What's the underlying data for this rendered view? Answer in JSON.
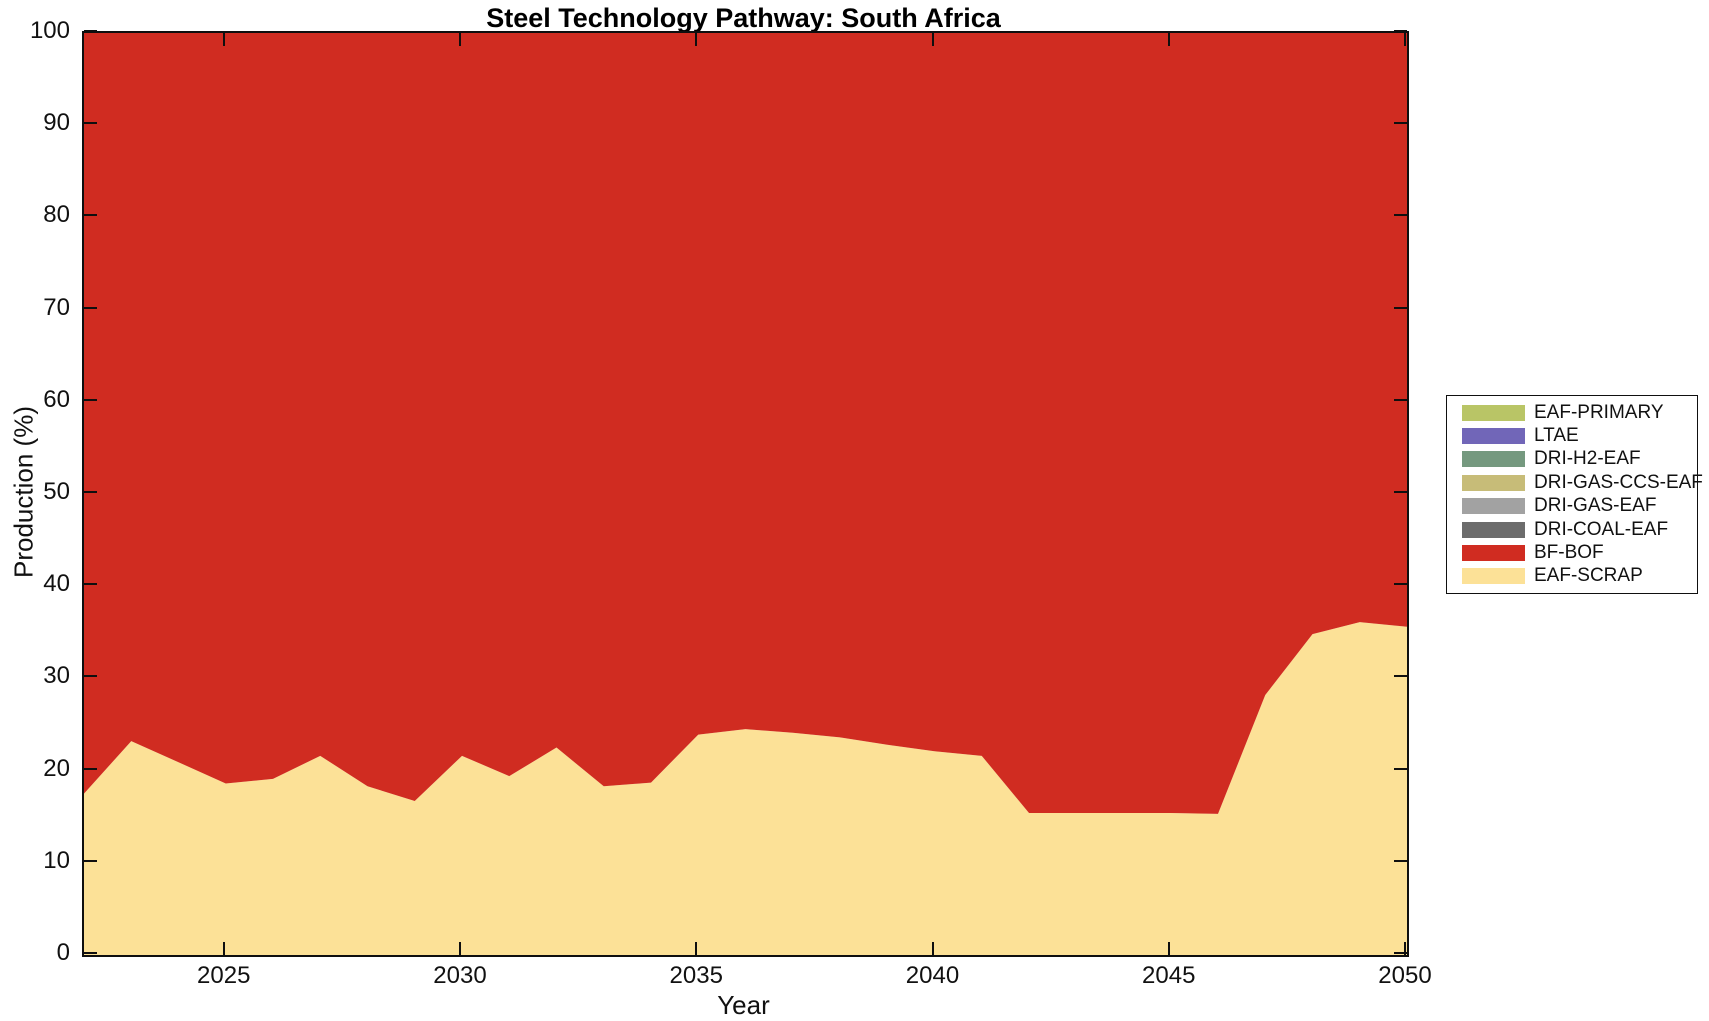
{
  "title": "Steel Technology Pathway: South Africa",
  "axes": {
    "xlabel": "Year",
    "ylabel": "Production (%)"
  },
  "colors": {
    "axis": "#0f0f0f",
    "background": "#ffffff"
  },
  "chart_data": {
    "type": "area",
    "stacked": true,
    "title": "Steel Technology Pathway: South Africa",
    "xlabel": "Year",
    "ylabel": "Production (%)",
    "xlim": [
      2022,
      2050
    ],
    "ylim": [
      0,
      100
    ],
    "grid": false,
    "xticks": [
      2025,
      2030,
      2035,
      2040,
      2045,
      2050
    ],
    "yticks": [
      0,
      10,
      20,
      30,
      40,
      50,
      60,
      70,
      80,
      90,
      100
    ],
    "x": [
      2022,
      2023,
      2024,
      2025,
      2026,
      2027,
      2028,
      2029,
      2030,
      2031,
      2032,
      2033,
      2034,
      2035,
      2036,
      2037,
      2038,
      2039,
      2040,
      2041,
      2042,
      2043,
      2044,
      2045,
      2046,
      2047,
      2048,
      2049,
      2050
    ],
    "series": [
      {
        "name": "EAF-SCRAP",
        "color": "#FCE197",
        "values": [
          17.5,
          23.2,
          20.9,
          18.6,
          19.1,
          21.6,
          18.3,
          16.7,
          21.6,
          19.4,
          22.5,
          18.3,
          18.7,
          23.9,
          24.5,
          24.1,
          23.6,
          22.8,
          22.1,
          21.6,
          15.4,
          15.4,
          15.4,
          15.4,
          15.3,
          28.2,
          34.8,
          36.1,
          35.6
        ]
      },
      {
        "name": "BF-BOF",
        "color": "#D02C21",
        "values": [
          82.5,
          76.8,
          79.1,
          81.4,
          80.9,
          78.4,
          81.7,
          83.3,
          78.4,
          80.6,
          77.5,
          81.7,
          81.3,
          76.1,
          75.5,
          75.9,
          76.4,
          77.2,
          77.9,
          78.4,
          84.6,
          84.6,
          84.6,
          84.6,
          84.7,
          71.8,
          65.2,
          63.9,
          64.4
        ]
      },
      {
        "name": "DRI-COAL-EAF",
        "color": "#6C6C6C",
        "values": [
          0,
          0,
          0,
          0,
          0,
          0,
          0,
          0,
          0,
          0,
          0,
          0,
          0,
          0,
          0,
          0,
          0,
          0,
          0,
          0,
          0,
          0,
          0,
          0,
          0,
          0,
          0,
          0,
          0
        ]
      },
      {
        "name": "DRI-GAS-EAF",
        "color": "#A2A2A2",
        "values": [
          0,
          0,
          0,
          0,
          0,
          0,
          0,
          0,
          0,
          0,
          0,
          0,
          0,
          0,
          0,
          0,
          0,
          0,
          0,
          0,
          0,
          0,
          0,
          0,
          0,
          0,
          0,
          0,
          0
        ]
      },
      {
        "name": "DRI-GAS-CCS-EAF",
        "color": "#C7BC78",
        "values": [
          0,
          0,
          0,
          0,
          0,
          0,
          0,
          0,
          0,
          0,
          0,
          0,
          0,
          0,
          0,
          0,
          0,
          0,
          0,
          0,
          0,
          0,
          0,
          0,
          0,
          0,
          0,
          0,
          0
        ]
      },
      {
        "name": "DRI-H2-EAF",
        "color": "#75997F",
        "values": [
          0,
          0,
          0,
          0,
          0,
          0,
          0,
          0,
          0,
          0,
          0,
          0,
          0,
          0,
          0,
          0,
          0,
          0,
          0,
          0,
          0,
          0,
          0,
          0,
          0,
          0,
          0,
          0,
          0
        ]
      },
      {
        "name": "LTAE",
        "color": "#7166B8",
        "values": [
          0,
          0,
          0,
          0,
          0,
          0,
          0,
          0,
          0,
          0,
          0,
          0,
          0,
          0,
          0,
          0,
          0,
          0,
          0,
          0,
          0,
          0,
          0,
          0,
          0,
          0,
          0,
          0,
          0
        ]
      },
      {
        "name": "EAF-PRIMARY",
        "color": "#B9C566",
        "values": [
          0,
          0,
          0,
          0,
          0,
          0,
          0,
          0,
          0,
          0,
          0,
          0,
          0,
          0,
          0,
          0,
          0,
          0,
          0,
          0,
          0,
          0,
          0,
          0,
          0,
          0,
          0,
          0,
          0
        ]
      }
    ],
    "legend": {
      "position": "right-outside",
      "items_top_to_bottom": [
        "EAF-PRIMARY",
        "LTAE",
        "DRI-H2-EAF",
        "DRI-GAS-CCS-EAF",
        "DRI-GAS-EAF",
        "DRI-COAL-EAF",
        "BF-BOF",
        "EAF-SCRAP"
      ]
    }
  }
}
